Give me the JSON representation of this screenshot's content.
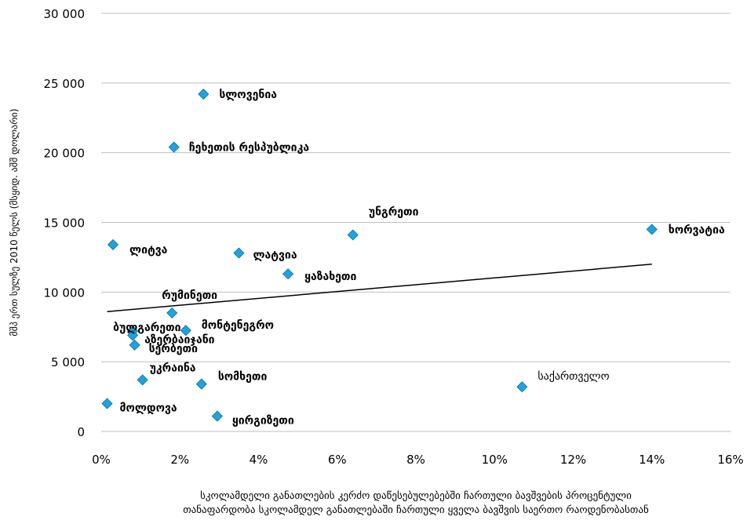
{
  "chart_data": {
    "type": "scatter",
    "title": "",
    "ylabel": "მშპ ერთ სულზე 2010 წელს (მსყიდ. აშშ დოლარი)",
    "xlabel_lines": [
      "სკოლამდელი განათლების კერძო დაწესებულებებში ჩართული ბავშვების პროცენტული",
      "თანაფარდობა  სკოლამდელ განათლებაში ჩართული ყველა ბავშვის საერთო რაოდენობასთან"
    ],
    "xlim": [
      0,
      0.16
    ],
    "ylim": [
      0,
      30000
    ],
    "x_ticks": [
      0,
      0.02,
      0.04,
      0.06,
      0.08,
      0.1,
      0.12,
      0.14,
      0.16
    ],
    "x_tick_labels": [
      "0%",
      "2%",
      "4%",
      "6%",
      "8%",
      "10%",
      "12%",
      "14%",
      "16%"
    ],
    "y_ticks": [
      0,
      5000,
      10000,
      15000,
      20000,
      25000,
      30000
    ],
    "y_tick_labels": [
      "0",
      "5 000",
      "10 000",
      "15 000",
      "20 000",
      "25 000",
      "30 000"
    ],
    "grid": "horizontal",
    "colors": {
      "marker": "#1fa3e0",
      "marker_edge": "#0a6fa3",
      "highlight_text": "#1fa3e0",
      "grid": "#bfbfbf",
      "trend": "#000000"
    },
    "points": [
      {
        "label": "სლოვენია",
        "x": 0.026,
        "y": 24200
      },
      {
        "label": "ჩეხეთის რესპუბლიკა",
        "x": 0.0185,
        "y": 20400
      },
      {
        "label": "უნგრეთი",
        "x": 0.064,
        "y": 14100
      },
      {
        "label": "ხორვატია",
        "x": 0.14,
        "y": 14500
      },
      {
        "label": "ლიტვა",
        "x": 0.003,
        "y": 13400
      },
      {
        "label": "ლატვია",
        "x": 0.035,
        "y": 12800
      },
      {
        "label": "ყაზახეთი",
        "x": 0.0475,
        "y": 11300
      },
      {
        "label": "რუმინეთი",
        "x": 0.018,
        "y": 8500
      },
      {
        "label": "ბულგარეთი",
        "x": 0.008,
        "y": 7200
      },
      {
        "label": "მონტენეგრო",
        "x": 0.0215,
        "y": 7250
      },
      {
        "label": "აზერბაიჯანი",
        "x": 0.008,
        "y": 6900
      },
      {
        "label": "სერბეთი",
        "x": 0.0085,
        "y": 6200
      },
      {
        "label": "უკრაინა",
        "x": 0.0105,
        "y": 3700
      },
      {
        "label": "სომხეთი",
        "x": 0.0255,
        "y": 3400
      },
      {
        "label": "საქართველო",
        "x": 0.107,
        "y": 3200,
        "highlight": true
      },
      {
        "label": "მოლდოვა",
        "x": 0.0015,
        "y": 2000
      },
      {
        "label": "ყირგიზეთი",
        "x": 0.0295,
        "y": 1100
      }
    ],
    "trendline": {
      "x": [
        0.0015,
        0.14
      ],
      "y": [
        8600,
        12000
      ]
    }
  }
}
